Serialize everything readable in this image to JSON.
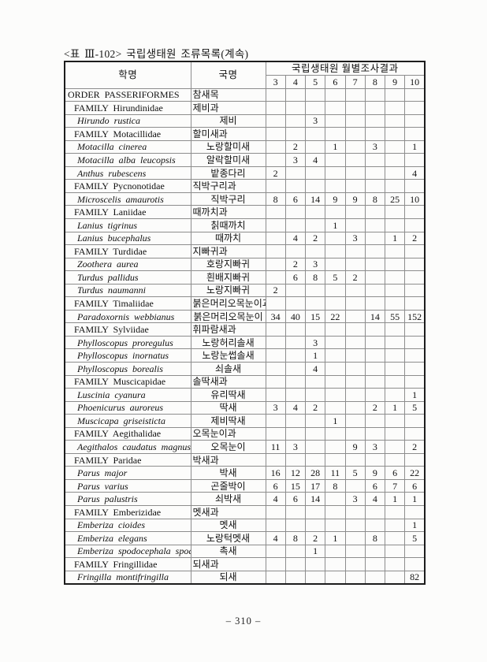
{
  "page": {
    "title": "<표 Ⅲ-102> 국립생태원 조류목록(계속)",
    "page_number": "– 310 –"
  },
  "table": {
    "col_headers": {
      "scientific": "학명",
      "korean": "국명",
      "monthly": "국립생태원 월별조사결과"
    },
    "months": [
      "3",
      "4",
      "5",
      "6",
      "7",
      "8",
      "9",
      "10"
    ],
    "rows": [
      {
        "type": "order",
        "sci": "ORDER PASSERIFORMES",
        "kor": "참새목",
        "counts": [
          "",
          "",
          "",
          "",
          "",
          "",
          "",
          ""
        ]
      },
      {
        "type": "family",
        "sci": "FAMILY Hirundinidae",
        "kor": "제비과",
        "counts": [
          "",
          "",
          "",
          "",
          "",
          "",
          "",
          ""
        ]
      },
      {
        "type": "species",
        "sci": "Hirundo rustica",
        "kor": "제비",
        "counts": [
          "",
          "",
          "3",
          "",
          "",
          "",
          "",
          ""
        ]
      },
      {
        "type": "family",
        "sci": "FAMILY Motacillidae",
        "kor": "할미새과",
        "counts": [
          "",
          "",
          "",
          "",
          "",
          "",
          "",
          ""
        ]
      },
      {
        "type": "species",
        "sci": "Motacilla cinerea",
        "kor": "노랑할미새",
        "counts": [
          "",
          "2",
          "",
          "1",
          "",
          "3",
          "",
          "1"
        ]
      },
      {
        "type": "species",
        "sci": "Motacilla alba leucopsis",
        "kor": "알락할미새",
        "counts": [
          "",
          "3",
          "4",
          "",
          "",
          "",
          "",
          ""
        ]
      },
      {
        "type": "species",
        "sci": "Anthus rubescens",
        "kor": "밭종다리",
        "counts": [
          "2",
          "",
          "",
          "",
          "",
          "",
          "",
          "4"
        ]
      },
      {
        "type": "family",
        "sci": "FAMILY Pycnonotidae",
        "kor": "직박구리과",
        "counts": [
          "",
          "",
          "",
          "",
          "",
          "",
          "",
          ""
        ]
      },
      {
        "type": "species",
        "sci": "Microscelis amaurotis",
        "kor": "직박구리",
        "counts": [
          "8",
          "6",
          "14",
          "9",
          "9",
          "8",
          "25",
          "10"
        ]
      },
      {
        "type": "family",
        "sci": "FAMILY Laniidae",
        "kor": "때까치과",
        "counts": [
          "",
          "",
          "",
          "",
          "",
          "",
          "",
          ""
        ]
      },
      {
        "type": "species",
        "sci": "Lanius tigrinus",
        "kor": "칡때까치",
        "counts": [
          "",
          "",
          "",
          "1",
          "",
          "",
          "",
          ""
        ]
      },
      {
        "type": "species",
        "sci": "Lanius bucephalus",
        "kor": "때까치",
        "counts": [
          "",
          "4",
          "2",
          "",
          "3",
          "",
          "1",
          "2"
        ]
      },
      {
        "type": "family",
        "sci": "FAMILY Turdidae",
        "kor": "지빠귀과",
        "counts": [
          "",
          "",
          "",
          "",
          "",
          "",
          "",
          ""
        ]
      },
      {
        "type": "species",
        "sci": "Zoothera aurea",
        "kor": "호랑지빠귀",
        "counts": [
          "",
          "2",
          "3",
          "",
          "",
          "",
          "",
          ""
        ]
      },
      {
        "type": "species",
        "sci": "Turdus pallidus",
        "kor": "흰배지빠귀",
        "counts": [
          "",
          "6",
          "8",
          "5",
          "2",
          "",
          "",
          ""
        ]
      },
      {
        "type": "species",
        "sci": "Turdus naumanni",
        "kor": "노랑지빠귀",
        "counts": [
          "2",
          "",
          "",
          "",
          "",
          "",
          "",
          ""
        ]
      },
      {
        "type": "family",
        "sci": "FAMILY Timaliidae",
        "kor": "붉은머리오목눈이과",
        "counts": [
          "",
          "",
          "",
          "",
          "",
          "",
          "",
          ""
        ]
      },
      {
        "type": "species",
        "sci": "Paradoxornis webbianus",
        "kor": "붉은머리오목눈이",
        "counts": [
          "34",
          "40",
          "15",
          "22",
          "",
          "14",
          "55",
          "152"
        ]
      },
      {
        "type": "family",
        "sci": "FAMILY Sylviidae",
        "kor": "휘파람새과",
        "counts": [
          "",
          "",
          "",
          "",
          "",
          "",
          "",
          ""
        ]
      },
      {
        "type": "species",
        "sci": "Phylloscopus proregulus",
        "kor": "노랑허리솔새",
        "counts": [
          "",
          "",
          "3",
          "",
          "",
          "",
          "",
          ""
        ]
      },
      {
        "type": "species",
        "sci": "Phylloscopus inornatus",
        "kor": "노랑눈썹솔새",
        "counts": [
          "",
          "",
          "1",
          "",
          "",
          "",
          "",
          ""
        ]
      },
      {
        "type": "species",
        "sci": "Phylloscopus borealis",
        "kor": "쇠솔새",
        "counts": [
          "",
          "",
          "4",
          "",
          "",
          "",
          "",
          ""
        ]
      },
      {
        "type": "family",
        "sci": "FAMILY Muscicapidae",
        "kor": "솔딱새과",
        "counts": [
          "",
          "",
          "",
          "",
          "",
          "",
          "",
          ""
        ]
      },
      {
        "type": "species",
        "sci": "Luscinia cyanura",
        "kor": "유리딱새",
        "counts": [
          "",
          "",
          "",
          "",
          "",
          "",
          "",
          "1"
        ]
      },
      {
        "type": "species",
        "sci": "Phoenicurus auroreus",
        "kor": "딱새",
        "counts": [
          "3",
          "4",
          "2",
          "",
          "",
          "2",
          "1",
          "5"
        ]
      },
      {
        "type": "species",
        "sci": "Muscicapa griseisticta",
        "kor": "제비딱새",
        "counts": [
          "",
          "",
          "",
          "1",
          "",
          "",
          "",
          ""
        ]
      },
      {
        "type": "family",
        "sci": "FAMILY Aegithalidae",
        "kor": "오목눈이과",
        "counts": [
          "",
          "",
          "",
          "",
          "",
          "",
          "",
          ""
        ]
      },
      {
        "type": "species",
        "sci": "Aegithalos caudatus magnus",
        "kor": "오목눈이",
        "counts": [
          "11",
          "3",
          "",
          "",
          "9",
          "3",
          "",
          "2"
        ]
      },
      {
        "type": "family",
        "sci": "FAMILY Paridae",
        "kor": "박새과",
        "counts": [
          "",
          "",
          "",
          "",
          "",
          "",
          "",
          ""
        ]
      },
      {
        "type": "species",
        "sci": "Parus major",
        "kor": "박새",
        "counts": [
          "16",
          "12",
          "28",
          "11",
          "5",
          "9",
          "6",
          "22"
        ]
      },
      {
        "type": "species",
        "sci": "Parus varius",
        "kor": "곤줄박이",
        "counts": [
          "6",
          "15",
          "17",
          "8",
          "",
          "6",
          "7",
          "6"
        ]
      },
      {
        "type": "species",
        "sci": "Parus palustris",
        "kor": "쇠박새",
        "counts": [
          "4",
          "6",
          "14",
          "",
          "3",
          "4",
          "1",
          "1"
        ]
      },
      {
        "type": "family",
        "sci": "FAMILY Emberizidae",
        "kor": "멧새과",
        "counts": [
          "",
          "",
          "",
          "",
          "",
          "",
          "",
          ""
        ]
      },
      {
        "type": "species",
        "sci": "Emberiza cioides",
        "kor": "멧새",
        "counts": [
          "",
          "",
          "",
          "",
          "",
          "",
          "",
          "1"
        ]
      },
      {
        "type": "species",
        "sci": "Emberiza elegans",
        "kor": "노랑턱멧새",
        "counts": [
          "4",
          "8",
          "2",
          "1",
          "",
          "8",
          "",
          "5"
        ]
      },
      {
        "type": "species",
        "sci": "Emberiza spodocephala spodocephala",
        "kor": "촉새",
        "counts": [
          "",
          "",
          "1",
          "",
          "",
          "",
          "",
          ""
        ]
      },
      {
        "type": "family",
        "sci": "FAMILY Fringillidae",
        "kor": "되새과",
        "counts": [
          "",
          "",
          "",
          "",
          "",
          "",
          "",
          ""
        ]
      },
      {
        "type": "species",
        "sci": "Fringilla montifringilla",
        "kor": "되새",
        "counts": [
          "",
          "",
          "",
          "",
          "",
          "",
          "",
          "82"
        ]
      }
    ]
  }
}
